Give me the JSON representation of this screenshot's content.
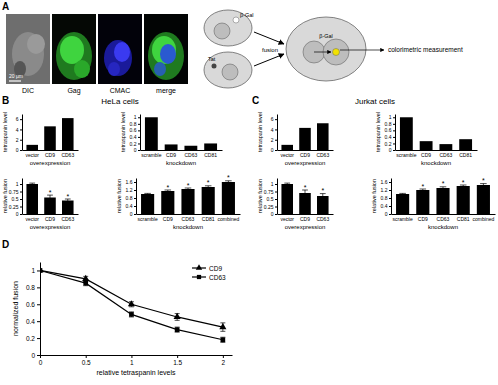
{
  "panel_labels": [
    "A",
    "B",
    "C",
    "D"
  ],
  "panel_a": {
    "images": [
      "DIC",
      "Gag",
      "CMAC",
      "merge"
    ],
    "scale_bar": "20 μm",
    "diagram": {
      "cell_1": "β-Gal",
      "cell_2": "Tat",
      "arrow": "fusion",
      "fused_cell": "β-Gal",
      "readout": "colorimetric measurement"
    }
  },
  "panel_titles": [
    "HeLa cells",
    "Jurkat cells"
  ],
  "chart_data": [
    {
      "type": "bar",
      "categories": [
        "vector",
        "CD9",
        "CD63"
      ],
      "values": [
        1,
        4.6,
        6.2
      ],
      "color": "#000000",
      "x_label": "overexpression",
      "y_label": "tetraspanin level",
      "ylim": [
        0,
        7
      ],
      "yticks": [
        0,
        2,
        4,
        6
      ]
    },
    {
      "type": "bar",
      "categories": [
        "scramble",
        "CD9",
        "CD63",
        "CD81"
      ],
      "values": [
        1,
        0.17,
        0.13,
        0.2
      ],
      "color": "#000000",
      "x_label": "knockdown",
      "y_label": "tetraspanin level",
      "ylim": [
        0,
        1.1
      ],
      "yticks": [
        0,
        0.2,
        0.4,
        0.6,
        0.8,
        1
      ]
    },
    {
      "type": "bar",
      "categories": [
        "vector",
        "CD9",
        "CD63"
      ],
      "values": [
        1,
        0.55,
        0.45
      ],
      "errors": [
        0.03,
        0.08,
        0.05
      ],
      "annotations": [
        null,
        "*",
        "*"
      ],
      "color": "#000000",
      "x_label": "overexpression",
      "y_label": "relative fusion",
      "ylim": [
        0,
        1.2
      ],
      "yticks": [
        0,
        0.25,
        0.5,
        0.75,
        1
      ]
    },
    {
      "type": "bar",
      "categories": [
        "scramble",
        "CD9",
        "CD63",
        "CD81",
        "combined"
      ],
      "values": [
        1,
        1.15,
        1.25,
        1.35,
        1.6
      ],
      "errors": [
        0.03,
        0.05,
        0.05,
        0.06,
        0.06
      ],
      "annotations": [
        null,
        "*",
        "*",
        "*",
        "*"
      ],
      "color": "#000000",
      "x_label": "knockdown",
      "y_label": "relative fusion",
      "ylim": [
        0,
        1.8
      ],
      "yticks": [
        0,
        0.4,
        0.8,
        1.2,
        1.6
      ]
    },
    {
      "type": "bar",
      "categories": [
        "vector",
        "CD9",
        "CD63"
      ],
      "values": [
        1,
        4.3,
        5.2
      ],
      "color": "#000000",
      "x_label": "overexpression",
      "y_label": "tetraspanin level",
      "ylim": [
        0,
        7
      ],
      "yticks": [
        0,
        2,
        4,
        6
      ]
    },
    {
      "type": "bar",
      "categories": [
        "scramble",
        "CD9",
        "CD63",
        "CD81"
      ],
      "values": [
        1,
        0.27,
        0.18,
        0.33
      ],
      "color": "#000000",
      "x_label": "knockdown",
      "y_label": "tetraspanin level",
      "ylim": [
        0,
        1.1
      ],
      "yticks": [
        0,
        0.2,
        0.4,
        0.6,
        0.8,
        1
      ]
    },
    {
      "type": "bar",
      "categories": [
        "vector",
        "CD9",
        "CD63"
      ],
      "values": [
        1,
        0.7,
        0.6
      ],
      "errors": [
        0.03,
        0.1,
        0.08
      ],
      "annotations": [
        null,
        "*",
        "*"
      ],
      "color": "#000000",
      "x_label": "overexpression",
      "y_label": "relative fusion",
      "ylim": [
        0,
        1.2
      ],
      "yticks": [
        0,
        0.25,
        0.5,
        0.75,
        1
      ]
    },
    {
      "type": "bar",
      "categories": [
        "scramble",
        "CD9",
        "CD63",
        "CD81",
        "combined"
      ],
      "values": [
        1,
        1.2,
        1.3,
        1.4,
        1.45
      ],
      "errors": [
        0.03,
        0.05,
        0.06,
        0.05,
        0.07
      ],
      "annotations": [
        null,
        "*",
        "*",
        "*",
        "*"
      ],
      "color": "#000000",
      "x_label": "knockdown",
      "y_label": "relative fusion",
      "ylim": [
        0,
        1.8
      ],
      "yticks": [
        0,
        0.4,
        0.8,
        1.2,
        1.6
      ]
    },
    {
      "type": "line",
      "x": [
        0,
        0.5,
        1,
        1.5,
        2
      ],
      "series": [
        {
          "name": "CD9",
          "color": "#000000",
          "marker": "triangle",
          "values": [
            1,
            0.9,
            0.6,
            0.45,
            0.33
          ],
          "errors": [
            0,
            0.03,
            0.03,
            0.04,
            0.05
          ]
        },
        {
          "name": "CD63",
          "color": "#000000",
          "marker": "square",
          "values": [
            1,
            0.85,
            0.48,
            0.3,
            0.18
          ],
          "errors": [
            0,
            0.03,
            0.03,
            0.03,
            0.03
          ]
        }
      ],
      "x_label": "relative tetraspanin levels",
      "y_label": "normalized fusion",
      "xlim": [
        0,
        2.1
      ],
      "xticks": [
        0,
        0.5,
        1,
        1.5,
        2
      ],
      "ylim": [
        0,
        1.1
      ],
      "yticks": [
        0,
        0.2,
        0.4,
        0.6,
        0.8,
        1
      ],
      "legend": "top-right"
    }
  ]
}
